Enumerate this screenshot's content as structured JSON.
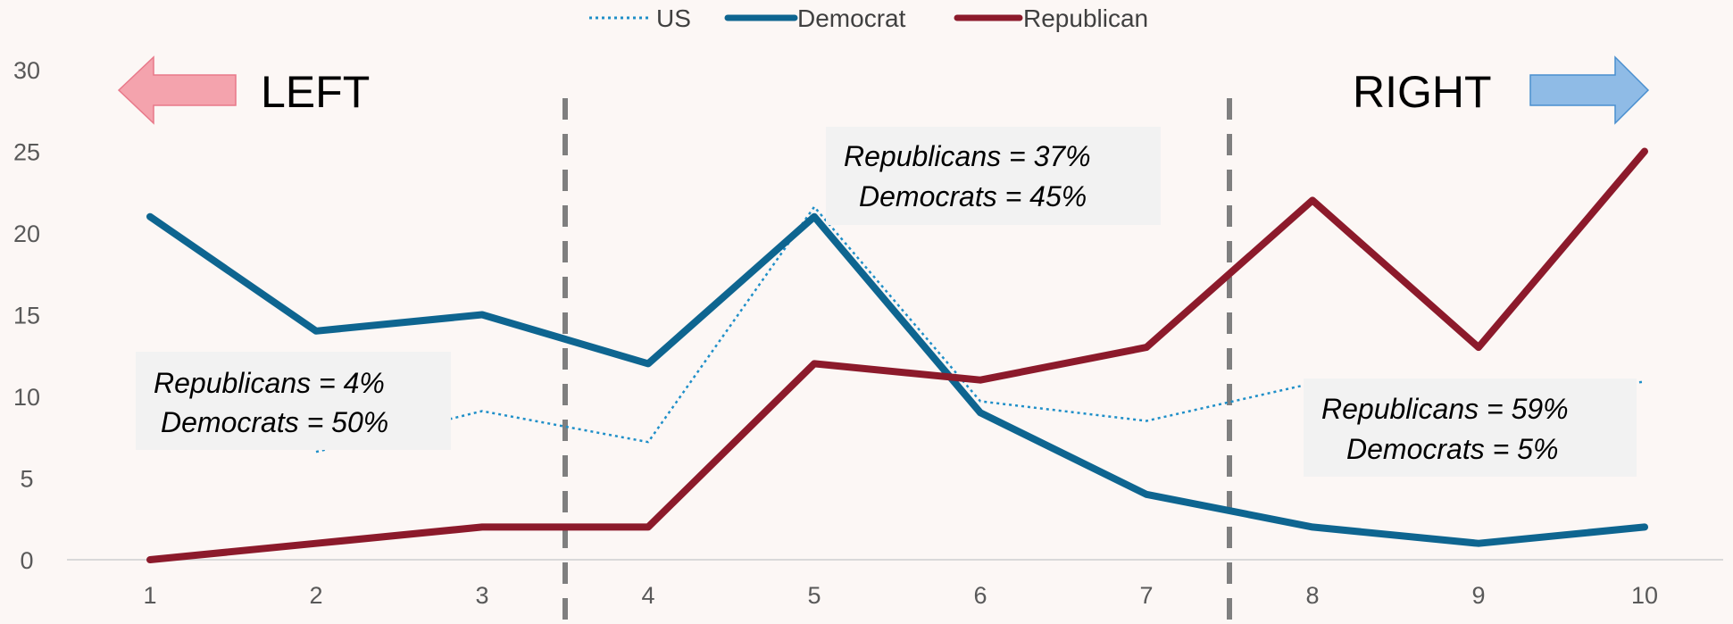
{
  "chart_data": {
    "type": "line",
    "title": "",
    "xlabel": "",
    "ylabel": "",
    "x": [
      1,
      2,
      3,
      4,
      5,
      6,
      7,
      8,
      9,
      10
    ],
    "ylim": [
      0,
      30
    ],
    "yticks": [
      0,
      5,
      10,
      15,
      20,
      25,
      30
    ],
    "grid": false,
    "legend_position": "top-center",
    "series": [
      {
        "name": "US",
        "style": "dotted",
        "color": "#1f8fc8",
        "values": [
          null,
          6.6,
          9.1,
          7.2,
          21.6,
          9.7,
          8.5,
          10.8,
          9.7,
          10.9
        ]
      },
      {
        "name": "Democrat",
        "style": "solid",
        "color": "#0e6590",
        "values": [
          21,
          14,
          15,
          12,
          21,
          9,
          4,
          2,
          1,
          2
        ]
      },
      {
        "name": "Republican",
        "style": "solid",
        "color": "#8c1a2b",
        "values": [
          0,
          1,
          2,
          2,
          12,
          11,
          13,
          22,
          13,
          25
        ]
      }
    ],
    "dividers_x": [
      3.5,
      7.5
    ],
    "direction_labels": {
      "left": "LEFT",
      "right": "RIGHT",
      "left_arrow_color": "#f4a3ad",
      "right_arrow_color": "#8fbbe6"
    },
    "annotations": [
      {
        "id": "left",
        "line1": "Republicans = 4%",
        "line2": "Democrats = 50%"
      },
      {
        "id": "center",
        "line1": "Republicans = 37%",
        "line2": "Democrats = 45%"
      },
      {
        "id": "right",
        "line1": "Republicans = 59%",
        "line2": "Democrats = 5%"
      }
    ]
  }
}
